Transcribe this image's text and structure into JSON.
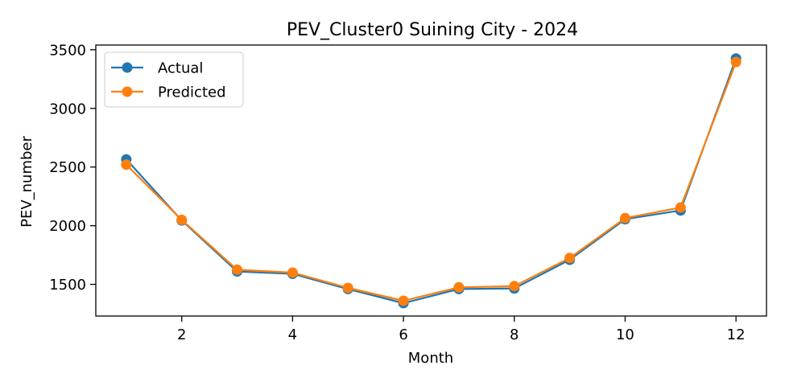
{
  "chart_data": {
    "type": "line",
    "title": "PEV_Cluster0 Suining City - 2024",
    "xlabel": "Month",
    "ylabel": "PEV_number",
    "x": [
      1,
      2,
      3,
      4,
      5,
      6,
      7,
      8,
      9,
      10,
      11,
      12
    ],
    "xlim": [
      0.45,
      12.55
    ],
    "ylim": [
      1230,
      3540
    ],
    "xticks": [
      2,
      4,
      6,
      8,
      10,
      12
    ],
    "yticks": [
      1500,
      2000,
      2500,
      3000,
      3500
    ],
    "grid": false,
    "legend": "top-left",
    "series": [
      {
        "name": "Actual",
        "color": "#1f77b4",
        "values": [
          2565,
          2045,
          1610,
          1590,
          1460,
          1340,
          1460,
          1465,
          1710,
          2055,
          2130,
          3425
        ]
      },
      {
        "name": "Predicted",
        "color": "#ff7f0e",
        "values": [
          2520,
          2050,
          1625,
          1600,
          1470,
          1360,
          1475,
          1485,
          1725,
          2065,
          2155,
          3395
        ]
      }
    ]
  }
}
